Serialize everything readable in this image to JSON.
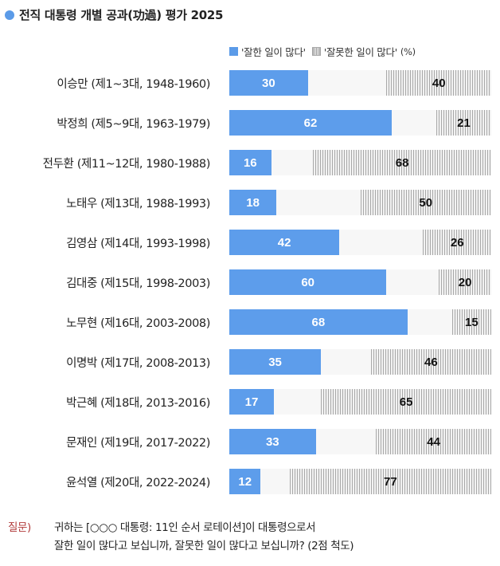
{
  "title": "전직 대통령 개별 공과(功過) 평가 2025",
  "legend": {
    "positive": "'잘한 일이 많다'",
    "negative": "'잘못한 일이 많다'",
    "unit": "(%)"
  },
  "colors": {
    "positive": "#5d9deb",
    "negative_pattern": "#a8a8a8",
    "track": "#f7f7f7",
    "question_label": "#b03a3a"
  },
  "rows": [
    {
      "label": "이승만 (제1~3대, 1948-1960)",
      "positive": 30,
      "negative": 40
    },
    {
      "label": "박정희 (제5~9대, 1963-1979)",
      "positive": 62,
      "negative": 21
    },
    {
      "label": "전두환 (제11~12대, 1980-1988)",
      "positive": 16,
      "negative": 68
    },
    {
      "label": "노태우 (제13대, 1988-1993)",
      "positive": 18,
      "negative": 50
    },
    {
      "label": "김영삼 (제14대, 1993-1998)",
      "positive": 42,
      "negative": 26
    },
    {
      "label": "김대중 (제15대, 1998-2003)",
      "positive": 60,
      "negative": 20
    },
    {
      "label": "노무현 (제16대, 2003-2008)",
      "positive": 68,
      "negative": 15
    },
    {
      "label": "이명박 (제17대, 2008-2013)",
      "positive": 35,
      "negative": 46
    },
    {
      "label": "박근혜 (제18대, 2013-2016)",
      "positive": 17,
      "negative": 65
    },
    {
      "label": "문재인 (제19대, 2017-2022)",
      "positive": 33,
      "negative": 44
    },
    {
      "label": "윤석열 (제20대, 2022-2024)",
      "positive": 12,
      "negative": 77
    }
  ],
  "question": {
    "label": "질문)",
    "line1": "귀하는 [○○○ 대통령: 11인 순서 로테이션]이 대통령으로서",
    "line2": "잘한 일이 많다고 보십니까, 잘못한 일이 많다고 보십니까? (2점 척도)"
  },
  "chart_data": {
    "type": "bar",
    "orientation": "horizontal",
    "stacked": "diverging",
    "title": "전직 대통령 개별 공과(功過) 평가 2025",
    "xlabel": "",
    "ylabel": "",
    "unit": "%",
    "xlim": [
      0,
      100
    ],
    "grid": false,
    "legend_position": "top-right",
    "categories": [
      "이승만 (제1~3대, 1948-1960)",
      "박정희 (제5~9대, 1963-1979)",
      "전두환 (제11~12대, 1980-1988)",
      "노태우 (제13대, 1988-1993)",
      "김영삼 (제14대, 1993-1998)",
      "김대중 (제15대, 1998-2003)",
      "노무현 (제16대, 2003-2008)",
      "이명박 (제17대, 2008-2013)",
      "박근혜 (제18대, 2013-2016)",
      "문재인 (제19대, 2017-2022)",
      "윤석열 (제20대, 2022-2024)"
    ],
    "series": [
      {
        "name": "'잘한 일이 많다'",
        "values": [
          30,
          62,
          16,
          18,
          42,
          60,
          68,
          35,
          17,
          33,
          12
        ]
      },
      {
        "name": "'잘못한 일이 많다'",
        "values": [
          40,
          21,
          68,
          50,
          26,
          20,
          15,
          46,
          65,
          44,
          77
        ]
      }
    ],
    "annotations": [
      "질문) 귀하는 [○○○ 대통령: 11인 순서 로테이션]이 대통령으로서 잘한 일이 많다고 보십니까, 잘못한 일이 많다고 보십니까? (2점 척도)"
    ]
  }
}
